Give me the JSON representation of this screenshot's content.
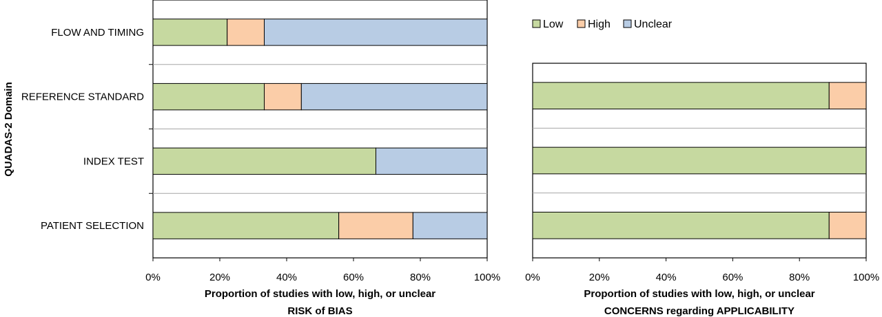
{
  "colors": {
    "Low": "#c6d9a0",
    "High": "#fbcda8",
    "Unclear": "#b8cce4"
  },
  "legend": [
    "Low",
    "High",
    "Unclear"
  ],
  "y_axis_title": "QUADAS-2 Domain",
  "chart_data": [
    {
      "type": "bar",
      "orientation": "horizontal",
      "stacked": true,
      "categories": [
        "FLOW AND TIMING",
        "REFERENCE STANDARD",
        "INDEX TEST",
        "PATIENT SELECTION"
      ],
      "series": [
        {
          "name": "Low",
          "values": [
            22.2,
            33.3,
            66.7,
            55.6
          ]
        },
        {
          "name": "High",
          "values": [
            11.1,
            11.1,
            0,
            22.2
          ]
        },
        {
          "name": "Unclear",
          "values": [
            66.7,
            55.6,
            33.3,
            22.2
          ]
        }
      ],
      "xlim": [
        0,
        100
      ],
      "xticks": [
        "0%",
        "20%",
        "40%",
        "60%",
        "80%",
        "100%"
      ],
      "xlabel": [
        "Proportion of studies with low, high, or unclear",
        "RISK of BIAS"
      ],
      "ylabel": "QUADAS-2 Domain",
      "grid": "horizontal"
    },
    {
      "type": "bar",
      "orientation": "horizontal",
      "stacked": true,
      "categories": [
        "REFERENCE STANDARD",
        "INDEX TEST",
        "PATIENT SELECTION"
      ],
      "series": [
        {
          "name": "Low",
          "values": [
            88.9,
            100,
            88.9
          ]
        },
        {
          "name": "High",
          "values": [
            11.1,
            0,
            11.1
          ]
        },
        {
          "name": "Unclear",
          "values": [
            0,
            0,
            0
          ]
        }
      ],
      "xlim": [
        0,
        100
      ],
      "xticks": [
        "0%",
        "20%",
        "40%",
        "60%",
        "80%",
        "100%"
      ],
      "xlabel": [
        "Proportion of studies with low, high, or unclear",
        "CONCERNS regarding APPLICABILITY"
      ],
      "grid": "horizontal",
      "legend_position": "top"
    }
  ]
}
